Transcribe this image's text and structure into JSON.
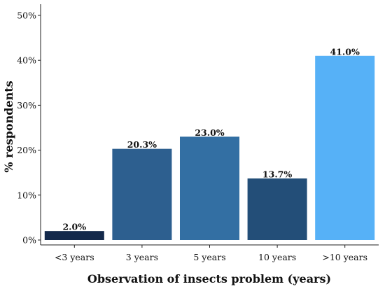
{
  "chart_data": {
    "type": "bar",
    "title": "",
    "xlabel": "Observation of insects problem (years)",
    "ylabel": "% respondents",
    "categories": [
      "<3 years",
      "3 years",
      "5 years",
      "10 years",
      ">10 years"
    ],
    "values": [
      2.0,
      20.3,
      23.0,
      13.7,
      41.0
    ],
    "value_labels": [
      "2.0%",
      "20.3%",
      "23.0%",
      "13.7%",
      "41.0%"
    ],
    "colors": [
      "#13294b",
      "#2d5f8f",
      "#336fa3",
      "#234e78",
      "#56b1f7"
    ],
    "ylim": [
      0,
      50
    ],
    "yticks": [
      0,
      10,
      20,
      30,
      40,
      50
    ],
    "ytick_labels": [
      "0%",
      "10%",
      "20%",
      "30%",
      "40%",
      "50%"
    ],
    "grid": false,
    "legend": "none"
  }
}
